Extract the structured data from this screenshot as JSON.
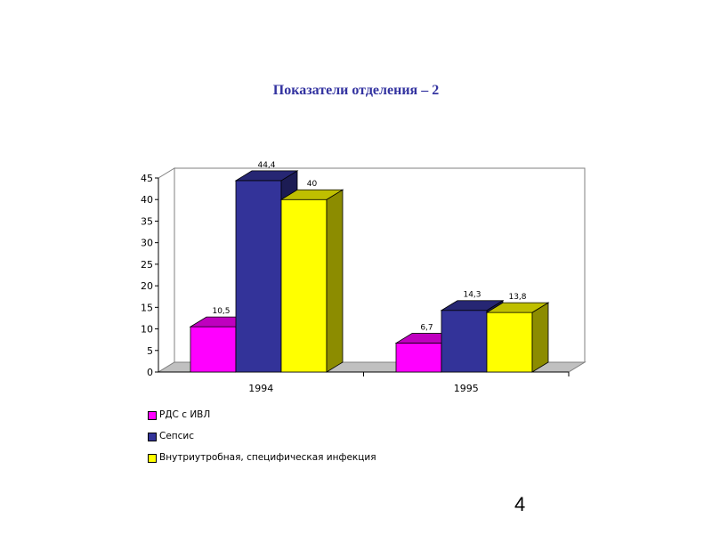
{
  "page": {
    "title": "Показатели отделения – 2",
    "page_number": "4"
  },
  "colors": {
    "magenta": "#ff00ff",
    "blue": "#333399",
    "yellow": "#ffff00",
    "floor": "#c0c0c0"
  },
  "chart_data": {
    "type": "bar",
    "categories": [
      "1994",
      "1995"
    ],
    "series": [
      {
        "name": "РДС с ИВЛ",
        "values": [
          10.5,
          6.7
        ],
        "labels": [
          "10,5",
          "6,7"
        ],
        "color": "#ff00ff"
      },
      {
        "name": "Сепсис",
        "values": [
          44.4,
          14.3
        ],
        "labels": [
          "44,4",
          "14,3"
        ],
        "color": "#333399"
      },
      {
        "name": "Внутриутробная, специфическая инфекция",
        "values": [
          40,
          13.8
        ],
        "labels": [
          "40",
          "13,8"
        ],
        "color": "#ffff00"
      }
    ],
    "ylim": [
      0,
      45
    ],
    "yticks": [
      "0",
      "5",
      "10",
      "15",
      "20",
      "25",
      "30",
      "35",
      "40",
      "45"
    ],
    "grid": false,
    "legend": "bottom-left",
    "style": "3d-column"
  }
}
